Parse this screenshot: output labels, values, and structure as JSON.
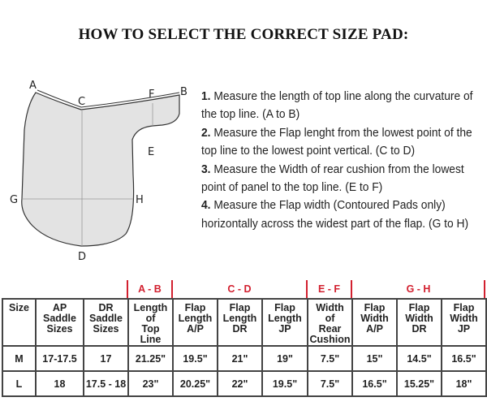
{
  "title": "HOW TO SELECT THE CORRECT SIZE PAD:",
  "diagram": {
    "points": [
      "A",
      "B",
      "C",
      "D",
      "E",
      "F",
      "G",
      "H"
    ]
  },
  "steps": [
    {
      "num": "1.",
      "text": "Measure the length of top line along the curvature of the top line. (A to B)"
    },
    {
      "num": "2.",
      "text": "Measure the Flap lenght from the lowest point of the top line to the lowest point vertical. (C to D)"
    },
    {
      "num": "3.",
      "text": "Measure the Width of rear cushion from the lowest point of panel to the top line. (E to F)"
    },
    {
      "num": "4.",
      "text": "Measure the Flap width (Contoured Pads only) horizontally across the widest part of the flap. (G to H)"
    }
  ],
  "groups": [
    "A - B",
    "C - D",
    "E - F",
    "G - H"
  ],
  "colors": {
    "accent": "#d2202f",
    "pad_fill": "#e3e3e3"
  },
  "table": {
    "headers": [
      "Size",
      "AP Saddle Sizes",
      "DR Saddle Sizes",
      "Length of Top Line",
      "Flap Length A/P",
      "Flap Length DR",
      "Flap Length JP",
      "Width of Rear Cushion",
      "Flap Width A/P",
      "Flap Width DR",
      "Flap Width JP"
    ],
    "rows": [
      [
        "M",
        "17-17.5",
        "17",
        "21.25\"",
        "19.5\"",
        "21\"",
        "19\"",
        "7.5\"",
        "15\"",
        "14.5\"",
        "16.5\""
      ],
      [
        "L",
        "18",
        "17.5 - 18",
        "23\"",
        "20.25\"",
        "22\"",
        "19.5\"",
        "7.5\"",
        "16.5\"",
        "15.25\"",
        "18\""
      ]
    ]
  }
}
